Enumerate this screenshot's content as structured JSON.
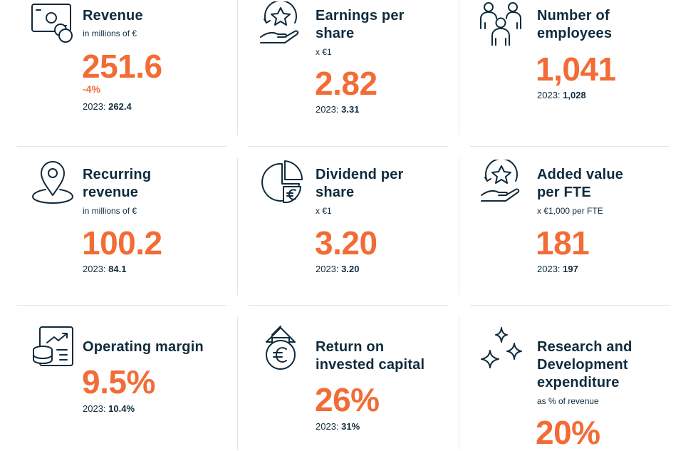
{
  "cards": {
    "revenue": {
      "title": "Revenue",
      "subtitle": "in millions of €",
      "value": "251.6",
      "change": "-4%",
      "prev_label": "2023:",
      "prev_value": "262.4"
    },
    "eps": {
      "title_line1": "Earnings per",
      "title_line2": "share",
      "subtitle": "x €1",
      "value": "2.82",
      "prev_label": "2023:",
      "prev_value": "3.31"
    },
    "employees": {
      "title_line1": "Number of",
      "title_line2": "employees",
      "value": "1,041",
      "prev_label": "2023:",
      "prev_value": "1,028"
    },
    "recurring": {
      "title_line1": "Recurring",
      "title_line2": "revenue",
      "subtitle": "in millions of €",
      "value": "100.2",
      "prev_label": "2023:",
      "prev_value": "84.1"
    },
    "dividend": {
      "title_line1": "Dividend per",
      "title_line2": "share",
      "subtitle": "x €1",
      "value": "3.20",
      "prev_label": "2023:",
      "prev_value": "3.20"
    },
    "added_value": {
      "title_line1": "Added value",
      "title_line2": "per FTE",
      "subtitle": "x €1,000 per FTE",
      "value": "181",
      "prev_label": "2023:",
      "prev_value": "197"
    },
    "margin": {
      "title": "Operating margin",
      "value": "9.5%",
      "prev_label": "2023:",
      "prev_value": "10.4%"
    },
    "roic": {
      "title_line1": "Return on",
      "title_line2": "invested capital",
      "value": "26%",
      "prev_label": "2023:",
      "prev_value": "31%"
    },
    "rnd": {
      "title_line1": "Research and",
      "title_line2": "Development",
      "title_line3": "expenditure",
      "subtitle": "as % of revenue",
      "value": "20%"
    }
  },
  "icons": [
    "banknote-coins-icon",
    "star-hand-icon",
    "people-icon",
    "location-pin-icon",
    "pie-euro-icon",
    "star-hand-icon",
    "database-chart-icon",
    "euro-arrow-icon",
    "sparkles-icon"
  ],
  "colors": {
    "accent": "#f26c36",
    "text": "#0f2b3d",
    "divider": "#e3e6e9"
  }
}
